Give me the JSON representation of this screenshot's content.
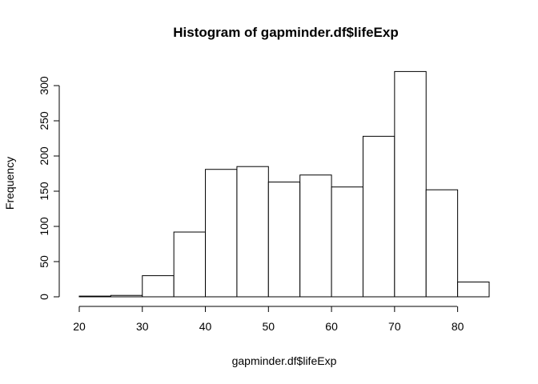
{
  "chart_data": {
    "type": "bar",
    "title": "Histogram of gapminder.df$lifeExp",
    "xlabel": "gapminder.df$lifeExp",
    "ylabel": "Frequency",
    "bin_edges": [
      20,
      25,
      30,
      35,
      40,
      45,
      50,
      55,
      60,
      65,
      70,
      75,
      80,
      85
    ],
    "values": [
      1,
      2,
      30,
      92,
      181,
      185,
      163,
      173,
      156,
      228,
      320,
      152,
      21
    ],
    "x_ticks": [
      20,
      30,
      40,
      50,
      60,
      70,
      80
    ],
    "y_ticks": [
      0,
      50,
      100,
      150,
      200,
      250,
      300
    ],
    "xlim": [
      20,
      85
    ],
    "ylim": [
      0,
      320
    ],
    "grid": false,
    "colors": {
      "bar_fill": "#ffffff",
      "bar_stroke": "#000000"
    }
  }
}
